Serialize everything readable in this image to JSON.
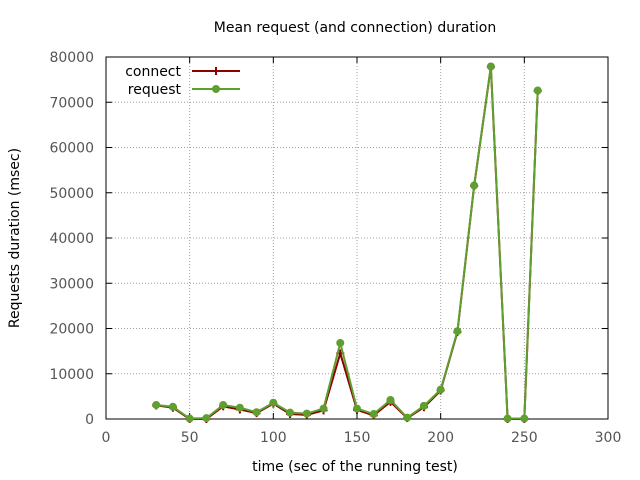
{
  "chart_data": {
    "type": "line",
    "title": "Mean request (and connection) duration",
    "xlabel": "time (sec of the running test)",
    "ylabel": "Requests duration (msec)",
    "xlim": [
      0,
      300
    ],
    "ylim": [
      0,
      80000
    ],
    "xticks": [
      0,
      50,
      100,
      150,
      200,
      250,
      300
    ],
    "yticks": [
      0,
      10000,
      20000,
      30000,
      40000,
      50000,
      60000,
      70000,
      80000
    ],
    "grid": true,
    "legend_position": "top-left",
    "series": [
      {
        "name": "connect",
        "color": "#8b0000",
        "marker": "plus",
        "x": [
          30,
          40,
          50,
          60,
          70,
          80,
          90,
          100,
          110,
          120,
          130,
          140,
          150,
          160,
          170,
          180,
          190,
          200,
          210,
          220,
          230,
          240,
          250,
          258
        ],
        "y": [
          3000,
          2500,
          0,
          0,
          2800,
          2100,
          1300,
          3400,
          1100,
          900,
          1900,
          14500,
          2000,
          800,
          3800,
          200,
          2600,
          6300,
          19200,
          51500,
          77800,
          0,
          0,
          72500
        ]
      },
      {
        "name": "request",
        "color": "#5f9f2f",
        "marker": "circle",
        "x": [
          30,
          40,
          50,
          60,
          70,
          80,
          90,
          100,
          110,
          120,
          130,
          140,
          150,
          160,
          170,
          180,
          190,
          200,
          210,
          220,
          230,
          240,
          250,
          258
        ],
        "y": [
          3100,
          2700,
          100,
          200,
          3100,
          2500,
          1500,
          3600,
          1400,
          1200,
          2300,
          16800,
          2300,
          1100,
          4200,
          300,
          2900,
          6500,
          19400,
          51600,
          77900,
          100,
          100,
          72600
        ]
      }
    ]
  }
}
